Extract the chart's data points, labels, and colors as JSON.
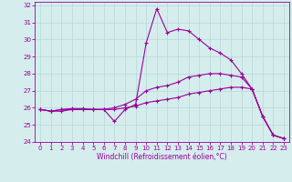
{
  "x": [
    0,
    1,
    2,
    3,
    4,
    5,
    6,
    7,
    8,
    9,
    10,
    11,
    12,
    13,
    14,
    15,
    16,
    17,
    18,
    19,
    20,
    21,
    22,
    23
  ],
  "line1": [
    25.9,
    25.8,
    25.9,
    25.95,
    25.95,
    25.9,
    25.9,
    25.2,
    25.9,
    26.2,
    29.8,
    31.8,
    30.4,
    30.6,
    30.5,
    30.0,
    29.5,
    29.2,
    28.8,
    28.0,
    27.1,
    25.5,
    24.4,
    24.2
  ],
  "line2": [
    25.9,
    25.8,
    25.9,
    25.9,
    25.9,
    25.9,
    25.9,
    26.0,
    26.2,
    26.5,
    27.0,
    27.2,
    27.3,
    27.5,
    27.8,
    27.9,
    28.0,
    28.0,
    27.9,
    27.8,
    27.1,
    25.5,
    24.4,
    24.2
  ],
  "line3": [
    25.9,
    25.8,
    25.8,
    25.9,
    25.9,
    25.9,
    25.9,
    25.9,
    26.0,
    26.1,
    26.3,
    26.4,
    26.5,
    26.6,
    26.8,
    26.9,
    27.0,
    27.1,
    27.2,
    27.2,
    27.1,
    25.5,
    24.4,
    24.2
  ],
  "line_color": "#990099",
  "bg_color": "#d5eded",
  "grid_color": "#b8d8d8",
  "xlim": [
    -0.5,
    23.5
  ],
  "ylim": [
    24,
    32.2
  ],
  "yticks": [
    24,
    25,
    26,
    27,
    28,
    29,
    30,
    31,
    32
  ],
  "xticks": [
    0,
    1,
    2,
    3,
    4,
    5,
    6,
    7,
    8,
    9,
    10,
    11,
    12,
    13,
    14,
    15,
    16,
    17,
    18,
    19,
    20,
    21,
    22,
    23
  ],
  "xlabel": "Windchill (Refroidissement éolien,°C)",
  "marker": "+",
  "markersize": 3,
  "linewidth": 0.8,
  "tick_fontsize": 5,
  "xlabel_fontsize": 5.5
}
